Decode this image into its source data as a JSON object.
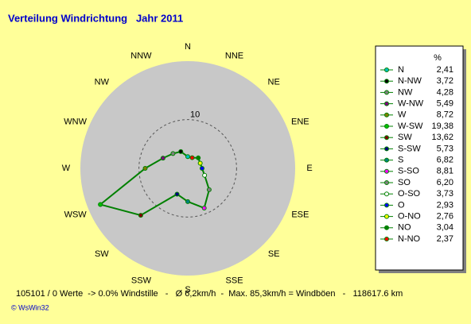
{
  "chart_data": {
    "type": "radar",
    "title": "Verteilung Windrichtung   Jahr 2011",
    "categories": [
      "N",
      "NNE",
      "NE",
      "ENE",
      "E",
      "ESE",
      "SE",
      "SSE",
      "S",
      "SSW",
      "SW",
      "WSW",
      "W",
      "WNW",
      "NW",
      "NNW"
    ],
    "rlim": [
      0,
      22
    ],
    "rticks": [
      10
    ],
    "line_color": "#008000",
    "legend_header": "%",
    "points": [
      {
        "name": "N",
        "color": "#00c0c0",
        "value": 2.41,
        "value_label": "2,41"
      },
      {
        "name": "N-NW",
        "color": "#000000",
        "value": 3.72,
        "value_label": "3,72"
      },
      {
        "name": "NW",
        "color": "#808080",
        "value": 4.28,
        "value_label": "4,28"
      },
      {
        "name": "W-NW",
        "color": "#800080",
        "value": 5.49,
        "value_label": "5,49"
      },
      {
        "name": "W",
        "color": "#808000",
        "value": 8.72,
        "value_label": "8,72"
      },
      {
        "name": "W-SW",
        "color": "#00c000",
        "value": 19.38,
        "value_label": "19,38"
      },
      {
        "name": "SW",
        "color": "#800000",
        "value": 13.62,
        "value_label": "13,62"
      },
      {
        "name": "S-SW",
        "color": "#000080",
        "value": 5.73,
        "value_label": "5,73"
      },
      {
        "name": "S",
        "color": "#008080",
        "value": 6.82,
        "value_label": "6,82"
      },
      {
        "name": "S-SO",
        "color": "#ff00ff",
        "value": 8.81,
        "value_label": "8,81"
      },
      {
        "name": "SO",
        "color": "#808080",
        "value": 6.2,
        "value_label": "6,20"
      },
      {
        "name": "O-SO",
        "color": "#ffffff",
        "value": 3.73,
        "value_label": "3,73"
      },
      {
        "name": "O",
        "color": "#0000ff",
        "value": 2.93,
        "value_label": "2,93"
      },
      {
        "name": "O-NO",
        "color": "#ffff00",
        "value": 2.76,
        "value_label": "2,76"
      },
      {
        "name": "NO",
        "color": "#008000",
        "value": 3.04,
        "value_label": "3,04"
      },
      {
        "name": "N-NO",
        "color": "#ff0000",
        "value": 2.37,
        "value_label": "2,37"
      }
    ],
    "footer": "105101 / 0 Werte  -> 0.0% Windstille   -   Ø 6,2km/h  -  Max. 85,3km/h = Windböen   -   118617.6 km",
    "credit": "© WsWin32"
  }
}
